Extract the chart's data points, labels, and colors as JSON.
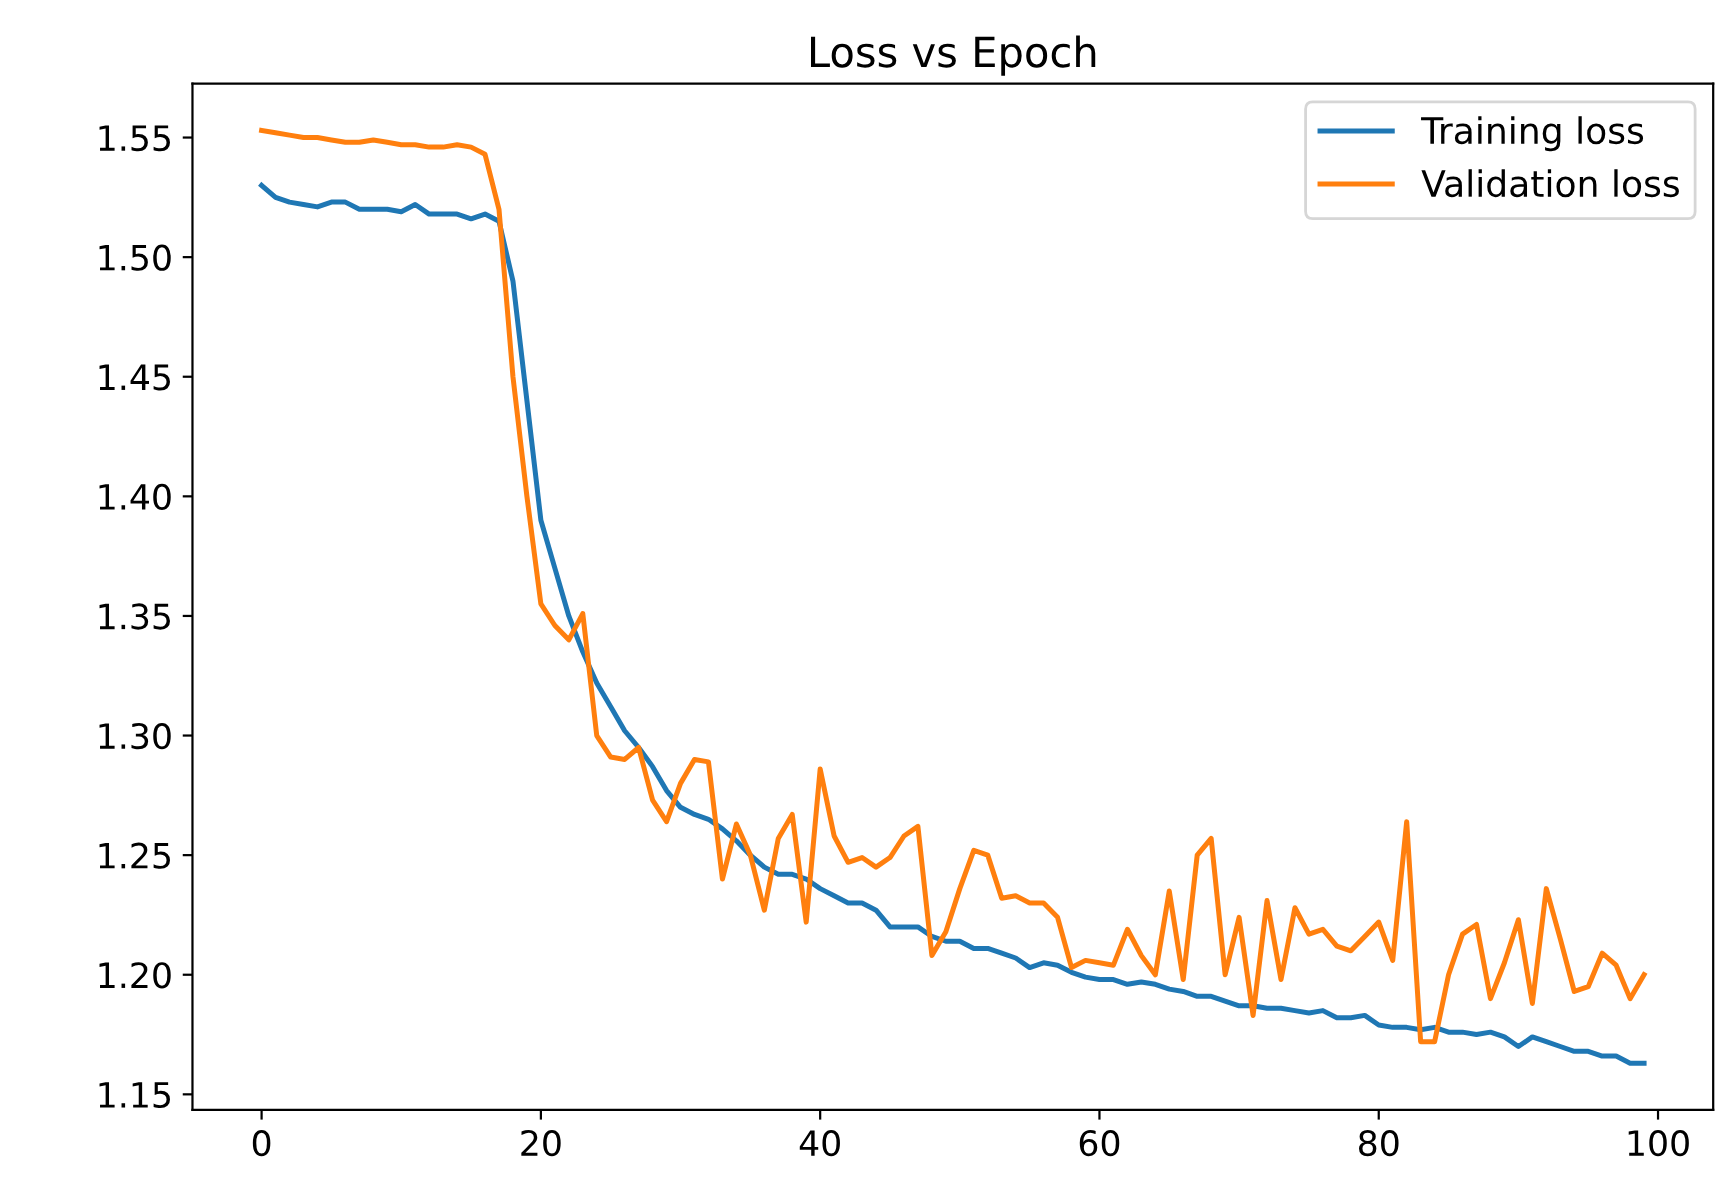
{
  "chart_data": {
    "type": "line",
    "title": "Loss vs Epoch",
    "legend": "top right",
    "grid": false,
    "x": [
      0,
      1,
      2,
      3,
      4,
      5,
      6,
      7,
      8,
      9,
      10,
      11,
      12,
      13,
      14,
      15,
      16,
      17,
      18,
      19,
      20,
      21,
      22,
      23,
      24,
      25,
      26,
      27,
      28,
      29,
      30,
      31,
      32,
      33,
      34,
      35,
      36,
      37,
      38,
      39,
      40,
      41,
      42,
      43,
      44,
      45,
      46,
      47,
      48,
      49,
      50,
      51,
      52,
      53,
      54,
      55,
      56,
      57,
      58,
      59,
      60,
      61,
      62,
      63,
      64,
      65,
      66,
      67,
      68,
      69,
      70,
      71,
      72,
      73,
      74,
      75,
      76,
      77,
      78,
      79,
      80,
      81,
      82,
      83,
      84,
      85,
      86,
      87,
      88,
      89,
      90,
      91,
      92,
      93,
      94,
      95,
      96,
      97,
      98,
      99
    ],
    "series": [
      {
        "name": "Training loss",
        "color": "#1f77b4",
        "values": [
          1.53,
          1.525,
          1.523,
          1.522,
          1.521,
          1.523,
          1.523,
          1.52,
          1.52,
          1.52,
          1.519,
          1.522,
          1.518,
          1.518,
          1.518,
          1.516,
          1.518,
          1.515,
          1.49,
          1.44,
          1.39,
          1.37,
          1.35,
          1.335,
          1.322,
          1.312,
          1.302,
          1.295,
          1.287,
          1.277,
          1.27,
          1.267,
          1.265,
          1.261,
          1.256,
          1.25,
          1.245,
          1.242,
          1.242,
          1.24,
          1.236,
          1.233,
          1.23,
          1.23,
          1.227,
          1.22,
          1.22,
          1.22,
          1.216,
          1.214,
          1.214,
          1.211,
          1.211,
          1.209,
          1.207,
          1.203,
          1.205,
          1.204,
          1.201,
          1.199,
          1.198,
          1.198,
          1.196,
          1.197,
          1.196,
          1.194,
          1.193,
          1.191,
          1.191,
          1.189,
          1.187,
          1.187,
          1.186,
          1.186,
          1.185,
          1.184,
          1.185,
          1.182,
          1.182,
          1.183,
          1.179,
          1.178,
          1.178,
          1.177,
          1.178,
          1.176,
          1.176,
          1.175,
          1.176,
          1.174,
          1.17,
          1.174,
          1.172,
          1.17,
          1.168,
          1.168,
          1.166,
          1.166,
          1.163,
          1.163
        ]
      },
      {
        "name": "Validation loss",
        "color": "#ff7f0e",
        "values": [
          1.553,
          1.552,
          1.551,
          1.55,
          1.55,
          1.549,
          1.548,
          1.548,
          1.549,
          1.548,
          1.547,
          1.547,
          1.546,
          1.546,
          1.547,
          1.546,
          1.543,
          1.52,
          1.45,
          1.4,
          1.355,
          1.346,
          1.34,
          1.351,
          1.3,
          1.291,
          1.29,
          1.295,
          1.273,
          1.264,
          1.28,
          1.29,
          1.289,
          1.24,
          1.263,
          1.25,
          1.227,
          1.257,
          1.267,
          1.222,
          1.286,
          1.258,
          1.247,
          1.249,
          1.245,
          1.249,
          1.258,
          1.262,
          1.208,
          1.218,
          1.236,
          1.252,
          1.25,
          1.232,
          1.233,
          1.23,
          1.23,
          1.224,
          1.203,
          1.206,
          1.205,
          1.204,
          1.219,
          1.208,
          1.2,
          1.235,
          1.198,
          1.25,
          1.257,
          1.2,
          1.224,
          1.183,
          1.231,
          1.198,
          1.228,
          1.217,
          1.219,
          1.212,
          1.21,
          1.216,
          1.222,
          1.206,
          1.264,
          1.172,
          1.172,
          1.2,
          1.217,
          1.221,
          1.19,
          1.205,
          1.223,
          1.188,
          1.236,
          1.215,
          1.193,
          1.195,
          1.209,
          1.204,
          1.19,
          1.2
        ]
      }
    ],
    "xlim": [
      -4.95,
      103.95
    ],
    "xticks": [
      0,
      20,
      40,
      60,
      80,
      100
    ],
    "ylim": [
      1.1435,
      1.5725
    ],
    "yticks": [
      {
        "value": 1.15,
        "label": "1.15"
      },
      {
        "value": 1.2,
        "label": "1.20"
      },
      {
        "value": 1.25,
        "label": "1.25"
      },
      {
        "value": 1.3,
        "label": "1.30"
      },
      {
        "value": 1.35,
        "label": "1.35"
      },
      {
        "value": 1.4,
        "label": "1.40"
      },
      {
        "value": 1.45,
        "label": "1.45"
      },
      {
        "value": 1.5,
        "label": "1.50"
      },
      {
        "value": 1.55,
        "label": "1.55"
      }
    ]
  }
}
